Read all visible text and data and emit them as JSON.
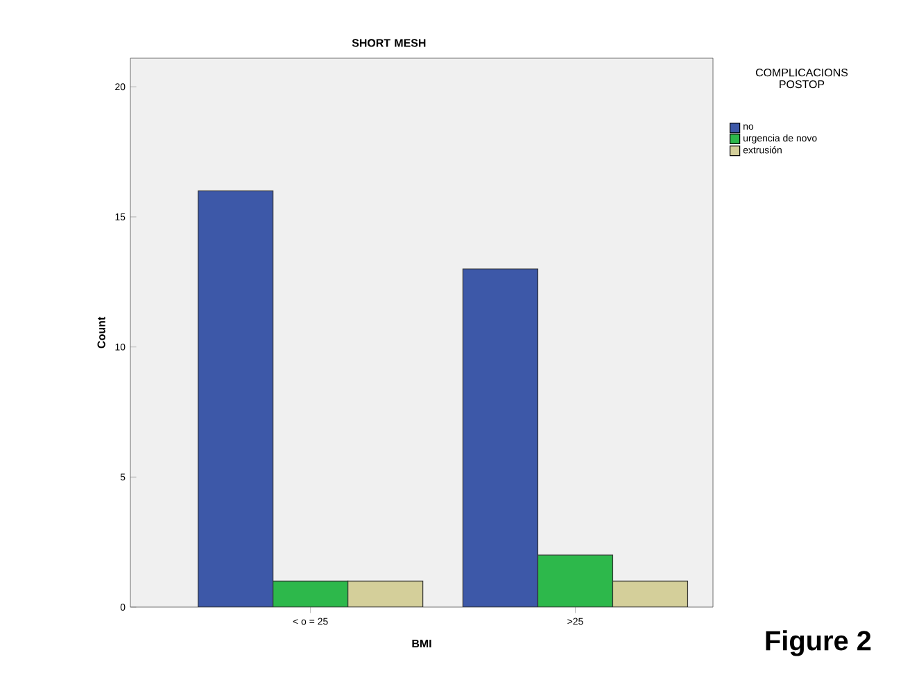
{
  "chart_data": {
    "type": "bar",
    "title": "SHORT MESH",
    "xlabel": "BMI",
    "ylabel": "Count",
    "legend_title": "COMPLICACIONS POSTOP",
    "categories": [
      "< o = 25",
      ">25"
    ],
    "series": [
      {
        "name": "no",
        "color": "#3d58a8",
        "values": [
          16,
          13
        ]
      },
      {
        "name": "urgencia de novo",
        "color": "#2db84b",
        "values": [
          1,
          2
        ]
      },
      {
        "name": "extrusión",
        "color": "#d4cf9a",
        "values": [
          1,
          1
        ]
      }
    ],
    "ylim": [
      0,
      21.1
    ],
    "yticks": [
      0,
      5,
      10,
      15,
      20
    ],
    "grid": false,
    "legend": "right",
    "annotations": [
      "Figure 2"
    ]
  }
}
